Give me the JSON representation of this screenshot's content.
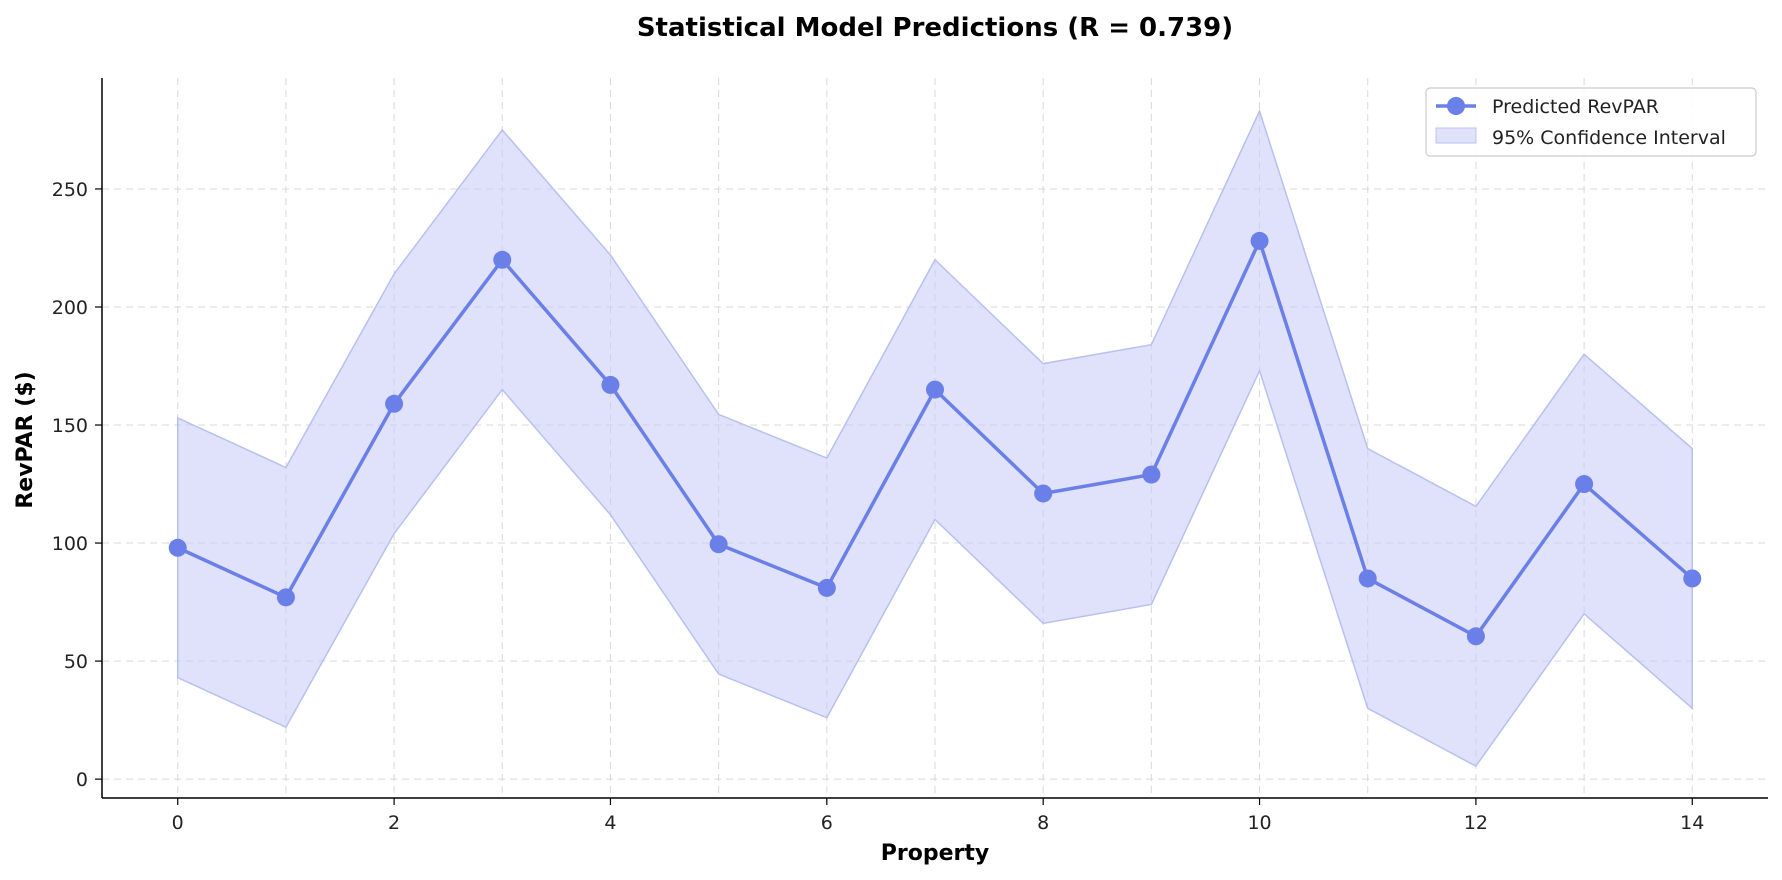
{
  "chart_data": {
    "type": "line",
    "title": "Statistical Model Predictions (R = 0.739)",
    "xlabel": "Property",
    "ylabel": "RevPAR ($)",
    "xlim": [
      -0.7,
      14.7
    ],
    "ylim": [
      -8,
      297
    ],
    "xticks": [
      0,
      2,
      4,
      6,
      8,
      10,
      12,
      14
    ],
    "yticks": [
      0,
      50,
      100,
      150,
      200,
      250
    ],
    "grid": true,
    "legend_position": "top-right",
    "x": [
      0,
      1,
      2,
      3,
      4,
      5,
      6,
      7,
      8,
      9,
      10,
      11,
      12,
      13,
      14
    ],
    "series": [
      {
        "name": "Predicted RevPAR",
        "color": "#6b7fe8",
        "values": [
          98,
          77,
          159,
          220,
          167,
          99.5,
          81,
          165,
          121,
          129,
          228,
          85,
          60.5,
          125,
          85
        ]
      }
    ],
    "band": {
      "name": "95% Confidence Interval",
      "fill": "#c5cbf5",
      "edge": "#b8c0f0",
      "upper": [
        153,
        132,
        214,
        275,
        222,
        154.5,
        136,
        220,
        176,
        184,
        283,
        140,
        115.5,
        180,
        140
      ],
      "lower": [
        43,
        22,
        104,
        165,
        112,
        44.5,
        26,
        110,
        66,
        74,
        173,
        30,
        5.5,
        70,
        30
      ]
    }
  }
}
